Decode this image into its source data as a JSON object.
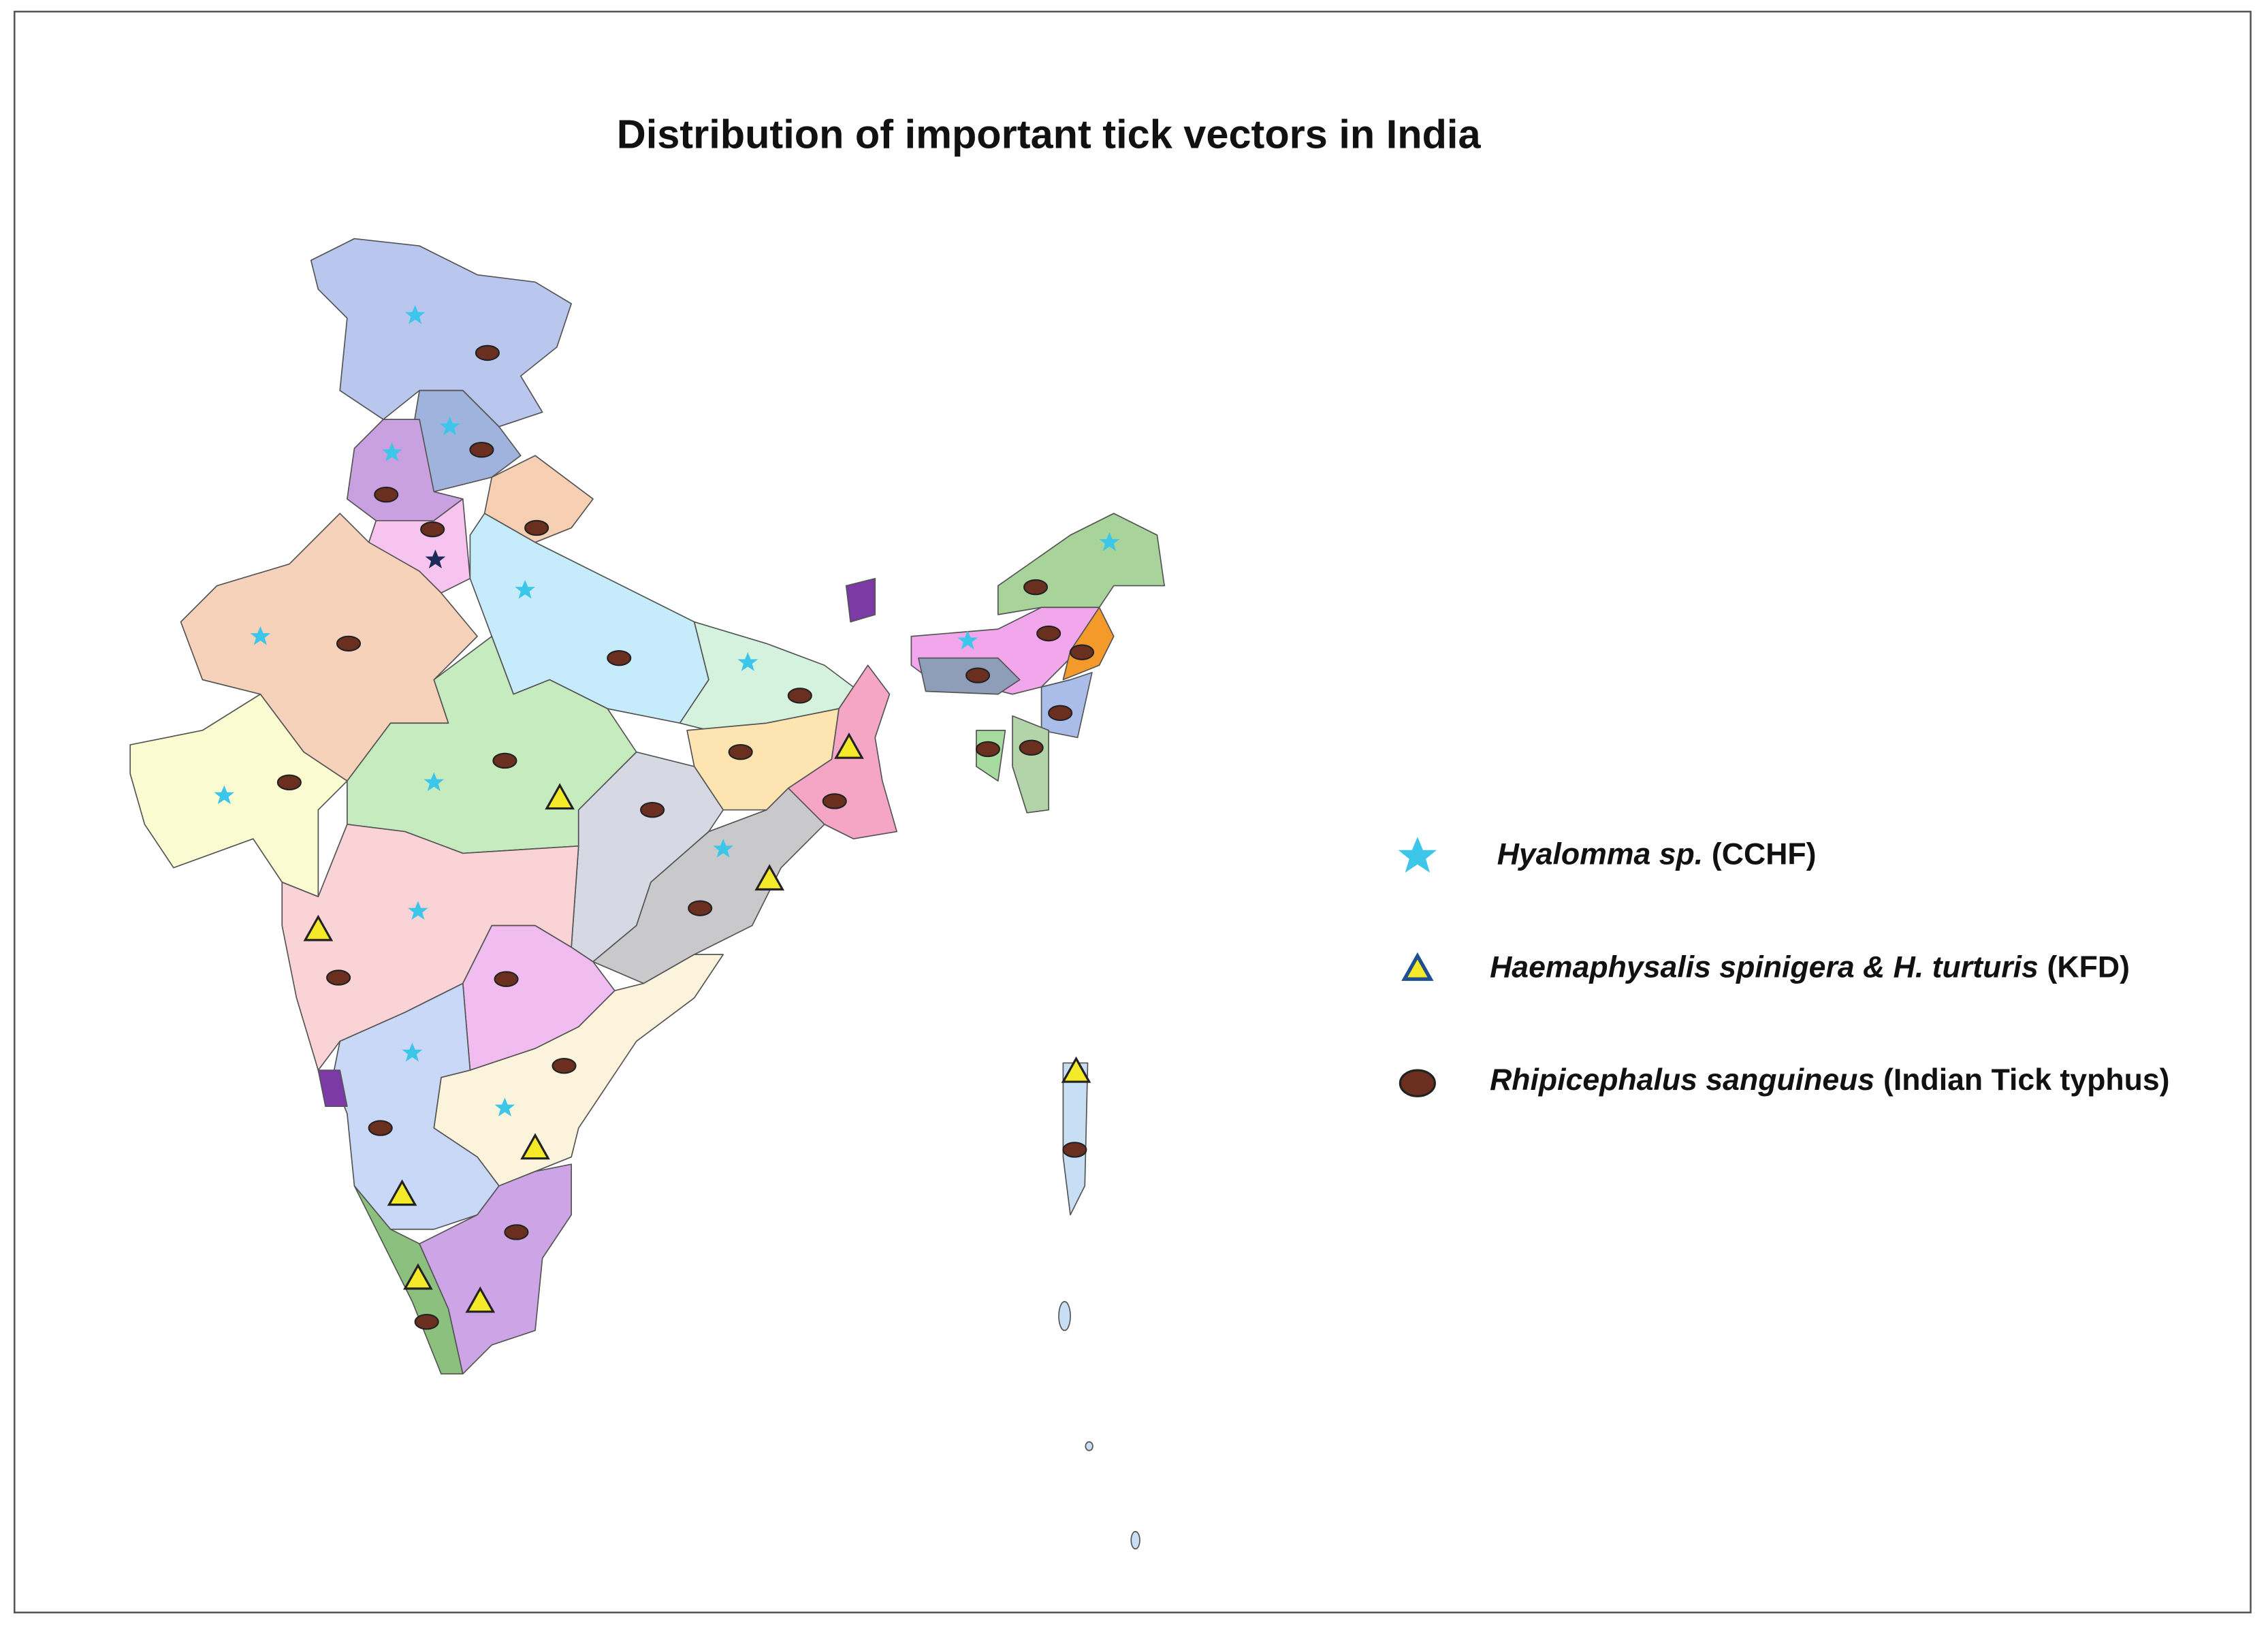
{
  "title": "Distribution of important tick vectors in India",
  "legend": [
    {
      "species": "Hyalomma sp.",
      "disease": "(CCHF)"
    },
    {
      "species": "Haemaphysalis spinigera & H. turturis",
      "disease": "(KFD)"
    },
    {
      "species": "Rhipicephalus sanguineus",
      "disease": "(Indian Tick typhus)"
    }
  ]
}
